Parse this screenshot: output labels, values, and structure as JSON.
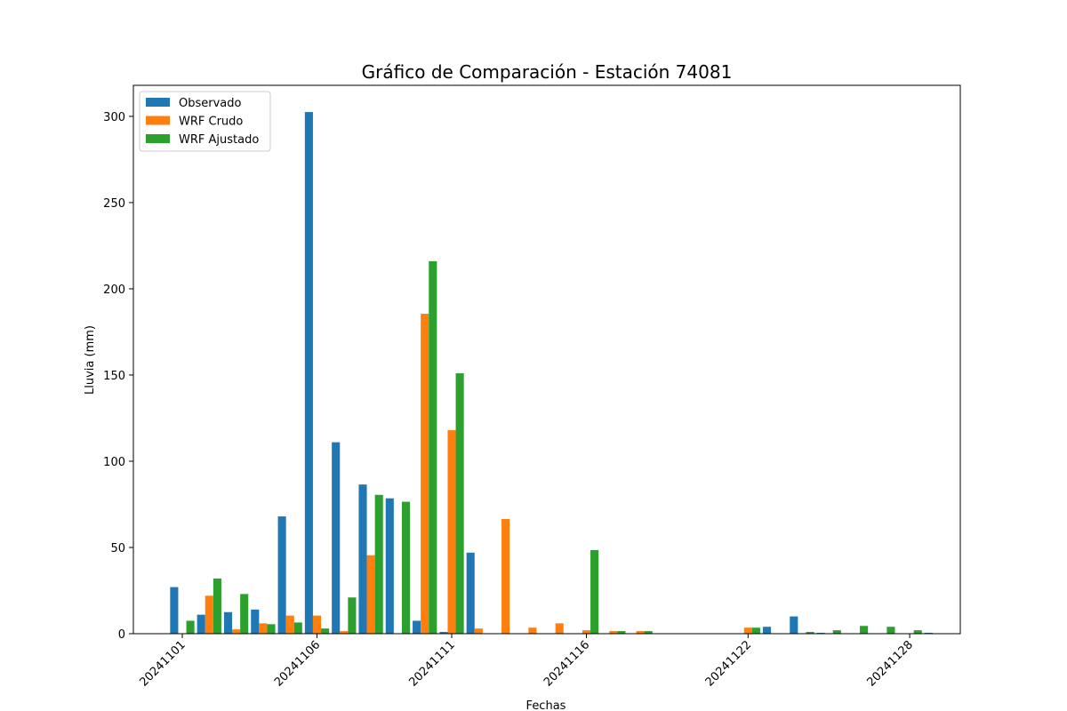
{
  "chart_data": {
    "type": "bar",
    "title": "Gráfico de Comparación - Estación 74081",
    "xlabel": "Fechas",
    "ylabel": "Lluvia (mm)",
    "ylim": [
      0,
      318
    ],
    "yticks": [
      0,
      50,
      100,
      150,
      200,
      250,
      300
    ],
    "grid": false,
    "legend_position": "top-left",
    "categories": [
      "20241101",
      "20241102",
      "20241103",
      "20241104",
      "20241105",
      "20241106",
      "20241107",
      "20241108",
      "20241109",
      "20241110",
      "20241111",
      "20241112",
      "20241113",
      "20241114",
      "20241115",
      "20241116",
      "20241117",
      "20241118",
      "20241119",
      "20241120",
      "20241121",
      "20241122",
      "20241123",
      "20241124",
      "20241125",
      "20241126",
      "20241127",
      "20241128",
      "20241129"
    ],
    "xtick_labels": [
      "20241101",
      "20241106",
      "20241111",
      "20241116",
      "20241122",
      "20241128"
    ],
    "series": [
      {
        "name": "Observado",
        "color": "#1f77b4",
        "values": [
          27,
          11,
          12.5,
          14,
          68,
          302.5,
          111,
          86.5,
          78.5,
          7.5,
          1,
          47,
          0,
          0,
          0,
          0,
          0,
          0,
          0,
          0,
          0,
          0,
          4,
          10,
          0.5,
          0,
          0,
          0,
          0.5
        ]
      },
      {
        "name": "WRF Crudo",
        "color": "#ff7f0e",
        "values": [
          0,
          22,
          2.5,
          6,
          10.5,
          10.5,
          1.5,
          45.5,
          0,
          185.5,
          118,
          3,
          66.5,
          3.5,
          6,
          2,
          1.5,
          1.5,
          0,
          0,
          0,
          3.5,
          0,
          0,
          0,
          0,
          0,
          0,
          0
        ]
      },
      {
        "name": "WRF Ajustado",
        "color": "#2ca02c",
        "values": [
          7.5,
          32,
          23,
          5.5,
          6.5,
          3,
          21,
          80.5,
          76.5,
          216,
          151,
          0,
          0,
          0,
          0,
          48.5,
          1.5,
          1.5,
          0,
          0,
          0,
          3.5,
          0,
          1,
          2,
          4.5,
          4,
          2,
          0
        ]
      }
    ]
  }
}
